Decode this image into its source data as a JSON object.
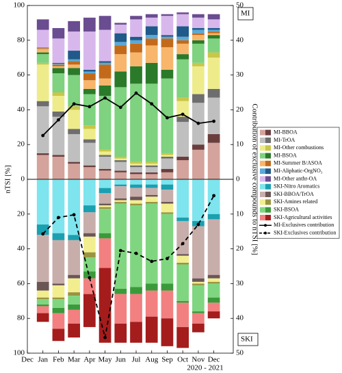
{
  "chart_data": [
    {
      "type": "bar",
      "stacked": true,
      "label": "MI",
      "inverted": false,
      "ylabel": "nTSI [%]",
      "y2label": "Contribution of exclusive compounds to nTSI [%]",
      "ylim": [
        0,
        100
      ],
      "yticks": [
        0,
        20,
        40,
        60,
        80,
        100
      ],
      "y2lim": [
        0,
        50
      ],
      "y2ticks": [
        0,
        10,
        20,
        30,
        40,
        50
      ],
      "series": [
        {
          "name": "MI-BBOA",
          "colors": [
            "#d4a39c",
            "#6b3e3e"
          ],
          "values": [
            14,
            13,
            9,
            7,
            5,
            4,
            3,
            3,
            4,
            11,
            17,
            21
          ],
          "exclusive_values": [
            1,
            1,
            1,
            1,
            1,
            1,
            1,
            1,
            2,
            2,
            3,
            5
          ]
        },
        {
          "name": "MI-TrOA",
          "colors": [
            "#bfbfbf",
            "#6e6e6e"
          ],
          "values": [
            27,
            22,
            16,
            13,
            7,
            5,
            3,
            3,
            6,
            20,
            24,
            21
          ],
          "exclusive_values": [
            3,
            3,
            3,
            2,
            1,
            1,
            1,
            1,
            1,
            3,
            5,
            5
          ]
        },
        {
          "name": "MI-Other combustions",
          "colors": [
            "#eeec8a",
            "#c9c64a"
          ],
          "values": [
            21,
            9,
            11,
            6,
            2,
            1,
            1,
            1,
            1,
            9,
            16,
            18
          ],
          "exclusive_values": [
            1,
            2,
            2,
            2,
            1,
            1,
            1,
            1,
            1,
            2,
            2,
            3
          ]
        },
        {
          "name": "MI-BSOA",
          "colors": [
            "#7fd27f",
            "#2a7a2a"
          ],
          "values": [
            5,
            11,
            18,
            18,
            31,
            40,
            45,
            45,
            43,
            22,
            11,
            8
          ],
          "exclusive_values": [
            1,
            3,
            4,
            3,
            6,
            9,
            10,
            12,
            5,
            3,
            2,
            2
          ]
        },
        {
          "name": "MI-Summer B/ASOA",
          "colors": [
            "#f7b66b",
            "#c36a1a"
          ],
          "values": [
            2,
            1,
            2,
            5,
            4,
            10,
            8,
            10,
            13,
            6,
            3,
            1
          ],
          "exclusive_values": [
            0.5,
            1,
            2,
            4,
            8,
            5,
            5,
            4,
            5,
            2,
            1,
            1
          ]
        },
        {
          "name": "MI-Aliphatic-OrgNO₃",
          "colors": [
            "#5aa9d6",
            "#1f5a8a"
          ],
          "values": [
            0.5,
            0.5,
            1,
            1,
            1,
            2,
            2,
            2,
            1,
            2,
            2,
            1
          ],
          "exclusive_values": [
            0,
            0.5,
            5,
            1,
            1,
            5,
            2,
            5,
            1,
            6,
            1,
            1
          ]
        },
        {
          "name": "MI-Other anthr-OA",
          "colors": [
            "#d8b8ec",
            "#6a4c90"
          ],
          "values": [
            10,
            14,
            11,
            22,
            18,
            5,
            10,
            5,
            11,
            7,
            6,
            5
          ],
          "exclusive_values": [
            6,
            6,
            6,
            8,
            8,
            1,
            2,
            2,
            1,
            1,
            2,
            3
          ]
        },
        {
          "name": "MI-Exclusives contribution",
          "type": "line",
          "axis": "y2",
          "dashed": false,
          "color": "#000000",
          "values": [
            12.6,
            17.1,
            21.7,
            20.9,
            23.4,
            20.7,
            24.8,
            21.7,
            17.7,
            18.7,
            16.1,
            16.7
          ]
        }
      ]
    },
    {
      "type": "bar",
      "stacked": true,
      "label": "SKI",
      "inverted": true,
      "xlabel": "2020 - 2021",
      "xlim": [
        0,
        13.25
      ],
      "xticks": [
        {
          "value": 0,
          "label": "Dec"
        },
        {
          "value": 1,
          "label": "Jan"
        },
        {
          "value": 2,
          "label": "Feb"
        },
        {
          "value": 3,
          "label": "Mar"
        },
        {
          "value": 4,
          "label": "Apr"
        },
        {
          "value": 5,
          "label": "May"
        },
        {
          "value": 6,
          "label": "Jun"
        },
        {
          "value": 7,
          "label": "Jul"
        },
        {
          "value": 8,
          "label": "Aug"
        },
        {
          "value": 9,
          "label": "Sep"
        },
        {
          "value": 10,
          "label": "Oct"
        },
        {
          "value": 11,
          "label": "Nov"
        },
        {
          "value": 12,
          "label": "Dec"
        }
      ],
      "ylim": [
        0,
        100
      ],
      "yticks": [
        20,
        40,
        60,
        80,
        100
      ],
      "y2lim": [
        0,
        50
      ],
      "y2ticks": [
        10,
        20,
        30,
        40,
        50
      ],
      "series": [
        {
          "name": "SKI-Nitro Aromatics",
          "colors": [
            "#7ee4ee",
            "#1aa0b0"
          ],
          "values": [
            26,
            31,
            32,
            15,
            5,
            3,
            3,
            3,
            3,
            22,
            24,
            20
          ],
          "exclusive_values": [
            6,
            4,
            3,
            4,
            3,
            1,
            2,
            2,
            3,
            2,
            3,
            3
          ]
        },
        {
          "name": "SKI-BBOA/TrOA",
          "colors": [
            "#c8aeab",
            "#6b5656"
          ],
          "values": [
            27,
            25,
            20,
            12,
            6,
            7,
            5,
            4,
            7,
            19,
            30,
            32
          ],
          "exclusive_values": [
            5,
            1,
            2,
            2,
            1,
            1,
            2,
            1,
            1,
            1,
            2,
            2
          ]
        },
        {
          "name": "SKI-Amines related",
          "colors": [
            "#f2ee90",
            "#9a9440"
          ],
          "values": [
            4,
            7,
            8,
            9,
            1,
            1,
            2,
            3,
            5,
            4,
            1,
            2
          ],
          "exclusive_values": [
            1,
            1,
            2,
            3,
            1,
            1,
            1,
            1,
            1,
            1,
            1,
            1
          ]
        },
        {
          "name": "SKI-BSOA",
          "colors": [
            "#80d680",
            "#3a9a3a"
          ],
          "values": [
            3,
            5,
            5,
            8,
            14,
            49,
            47,
            46,
            40,
            21,
            15,
            8
          ],
          "exclusive_values": [
            1,
            3,
            3,
            4,
            3,
            3,
            4,
            4,
            4,
            1,
            1,
            3
          ]
        },
        {
          "name": "SKI-Agricultural activities",
          "colors": [
            "#f28080",
            "#a51c1c"
          ],
          "values": [
            4,
            9,
            8,
            9,
            17,
            17,
            16,
            15,
            16,
            14,
            6,
            5
          ],
          "exclusive_values": [
            5,
            7,
            8,
            19,
            43,
            11,
            12,
            15,
            16,
            12,
            5,
            4
          ]
        },
        {
          "name": "SKI-Exclusives contribution",
          "type": "line",
          "axis": "y2",
          "dashed": true,
          "color": "#000000",
          "values": [
            15.7,
            11,
            10.2,
            28.3,
            45.5,
            20.5,
            21.3,
            23.6,
            22.8,
            18.5,
            13,
            4.7
          ]
        }
      ]
    }
  ]
}
